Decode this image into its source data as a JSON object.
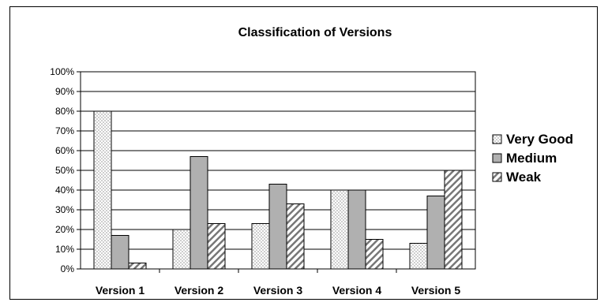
{
  "chart_data": {
    "type": "bar",
    "title": "Classification of Versions",
    "xlabel": "",
    "ylabel": "",
    "categories": [
      "Version 1",
      "Version 2",
      "Version 3",
      "Version 4",
      "Version 5"
    ],
    "series": [
      {
        "name": "Very Good",
        "values": [
          80,
          20,
          23,
          40,
          13
        ]
      },
      {
        "name": "Medium",
        "values": [
          17,
          57,
          43,
          40,
          37
        ]
      },
      {
        "name": "Weak",
        "values": [
          3,
          23,
          33,
          15,
          50
        ]
      }
    ],
    "yticks": [
      "0%",
      "10%",
      "20%",
      "30%",
      "40%",
      "50%",
      "60%",
      "70%",
      "80%",
      "90%",
      "100%"
    ],
    "ylim": [
      0,
      100
    ],
    "grid": true,
    "legend": "right",
    "colors": {
      "very_good": "#ffffff",
      "medium": "#b0b0b0",
      "weak": "#ffffff",
      "dots": "#555555",
      "stripes": "#666666"
    }
  }
}
